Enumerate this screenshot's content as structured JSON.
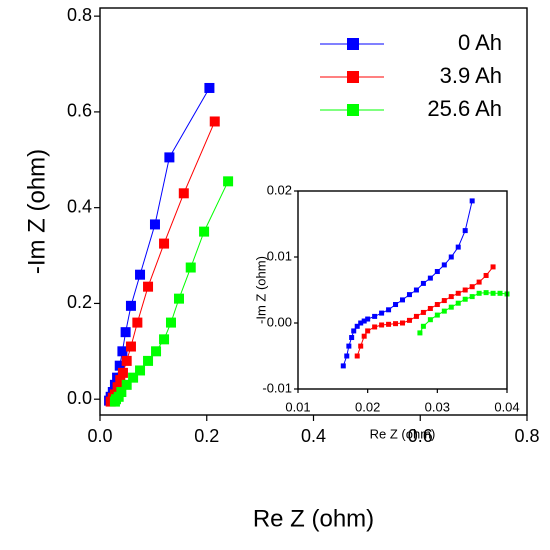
{
  "chart_data": [
    {
      "type": "scatter",
      "xlabel": "Re Z (ohm)",
      "ylabel": "-Im Z (ohm)",
      "xlim": [
        0,
        0.8
      ],
      "xticks": [
        {
          "value": 0,
          "label": "0.0"
        },
        0.2,
        0.4,
        0.6,
        0.8
      ],
      "ylim": [
        -0.033,
        0.817
      ],
      "yticks": [
        {
          "value": 0,
          "label": "0.0"
        },
        0.2,
        0.4,
        0.6,
        0.8
      ],
      "legend": "upper right",
      "series": [
        {
          "name": "0 Ah",
          "color": "#0000ff",
          "x": [
            0.017,
            0.02,
            0.024,
            0.028,
            0.032,
            0.037,
            0.042,
            0.048,
            0.058,
            0.075,
            0.103,
            0.13,
            0.205
          ],
          "values": [
            -0.003,
            0.005,
            0.015,
            0.03,
            0.045,
            0.07,
            0.1,
            0.14,
            0.195,
            0.26,
            0.365,
            0.505,
            0.65
          ]
        },
        {
          "name": "3.9 Ah",
          "color": "#ff0000",
          "x": [
            0.02,
            0.024,
            0.028,
            0.033,
            0.038,
            0.043,
            0.05,
            0.058,
            0.07,
            0.09,
            0.12,
            0.157,
            0.215
          ],
          "values": [
            -0.005,
            0.003,
            0.01,
            0.025,
            0.04,
            0.055,
            0.08,
            0.11,
            0.16,
            0.235,
            0.325,
            0.43,
            0.58
          ]
        },
        {
          "name": "25.6 Ah",
          "color": "#00ff00",
          "x": [
            0.028,
            0.03,
            0.035,
            0.04,
            0.05,
            0.062,
            0.075,
            0.09,
            0.105,
            0.12,
            0.133,
            0.148,
            0.17,
            0.195,
            0.24
          ],
          "values": [
            -0.005,
            0.0,
            0.005,
            0.015,
            0.03,
            0.045,
            0.06,
            0.08,
            0.1,
            0.125,
            0.16,
            0.21,
            0.275,
            0.35,
            0.455
          ]
        }
      ]
    },
    {
      "type": "scatter",
      "xlabel": "Re Z (ohm)",
      "ylabel": "-Im Z (ohm)",
      "xlim": [
        0.01,
        0.04
      ],
      "xticks": [
        0.01,
        0.02,
        0.03,
        0.04
      ],
      "ylim": [
        -0.01,
        0.02
      ],
      "yticks": [
        -0.01,
        {
          "value": 0,
          "label": "0.00"
        },
        0.01,
        0.02
      ],
      "series": [
        {
          "color": "#0000ff",
          "x": [
            0.0165,
            0.017,
            0.0173,
            0.0177,
            0.018,
            0.0185,
            0.019,
            0.0195,
            0.02,
            0.021,
            0.022,
            0.023,
            0.024,
            0.025,
            0.026,
            0.027,
            0.028,
            0.029,
            0.03,
            0.031,
            0.032,
            0.033,
            0.034,
            0.035
          ],
          "values": [
            -0.0065,
            -0.005,
            -0.0035,
            -0.0022,
            -0.0012,
            -0.0005,
            0.0,
            0.0003,
            0.0006,
            0.001,
            0.0015,
            0.002,
            0.0028,
            0.0035,
            0.0043,
            0.005,
            0.006,
            0.0068,
            0.0078,
            0.0088,
            0.01,
            0.0115,
            0.014,
            0.0185
          ]
        },
        {
          "color": "#ff0000",
          "x": [
            0.0185,
            0.019,
            0.0195,
            0.02,
            0.021,
            0.022,
            0.023,
            0.024,
            0.025,
            0.026,
            0.027,
            0.028,
            0.029,
            0.03,
            0.031,
            0.032,
            0.033,
            0.034,
            0.035,
            0.036,
            0.037,
            0.038
          ],
          "values": [
            -0.005,
            -0.0035,
            -0.002,
            -0.0012,
            -0.0006,
            -0.0003,
            -0.0002,
            -0.0001,
            0.0,
            0.0004,
            0.001,
            0.0016,
            0.0022,
            0.0028,
            0.0034,
            0.004,
            0.0045,
            0.005,
            0.0055,
            0.0062,
            0.0072,
            0.0085
          ]
        },
        {
          "color": "#00ff00",
          "x": [
            0.0275,
            0.028,
            0.029,
            0.03,
            0.031,
            0.032,
            0.033,
            0.034,
            0.035,
            0.036,
            0.037,
            0.038,
            0.039,
            0.04
          ],
          "values": [
            -0.0015,
            -0.0005,
            0.0005,
            0.0012,
            0.0018,
            0.0024,
            0.003,
            0.0036,
            0.004,
            0.0045,
            0.0046,
            0.0045,
            0.0045,
            0.0044
          ]
        }
      ]
    }
  ]
}
